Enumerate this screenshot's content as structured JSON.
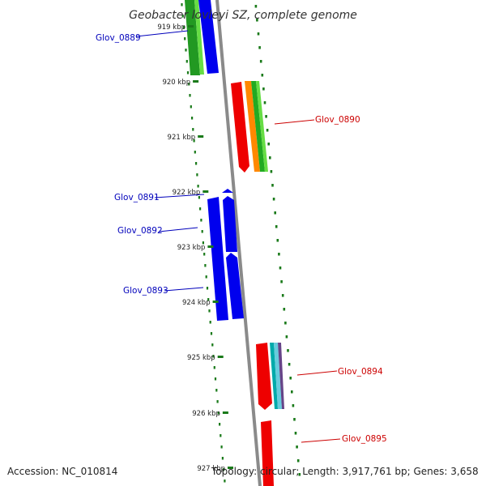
{
  "title": "Geobacter lovleyi SZ, complete genome",
  "footer": {
    "accession": "Accession: NC_010814",
    "topology": "Topology: circular; Length: 3,917,761 bp; Genes: 3,658"
  },
  "colors": {
    "axis": "#888888",
    "tick": "#1a7a1a",
    "plus_label": "#0000bb",
    "minus_label": "#cc0000",
    "blue": "#0000ee",
    "red": "#ee0000",
    "green": "#22aa22",
    "light_green": "#66dd44",
    "orange": "#ff8800",
    "teal": "#00aaaa",
    "purple": "#664488"
  },
  "kbp_labels": [
    "919 kbp",
    "920 kbp",
    "921 kbp",
    "922 kbp",
    "923 kbp",
    "924 kbp",
    "925 kbp",
    "926 kbp",
    "927 kbp"
  ],
  "genes": [
    {
      "name": "Glov_0889",
      "strand": "plus"
    },
    {
      "name": "Glov_0890",
      "strand": "minus"
    },
    {
      "name": "Glov_0891",
      "strand": "plus"
    },
    {
      "name": "Glov_0892",
      "strand": "plus"
    },
    {
      "name": "Glov_0893",
      "strand": "plus"
    },
    {
      "name": "Glov_0894",
      "strand": "minus"
    },
    {
      "name": "Glov_0895",
      "strand": "minus"
    }
  ]
}
